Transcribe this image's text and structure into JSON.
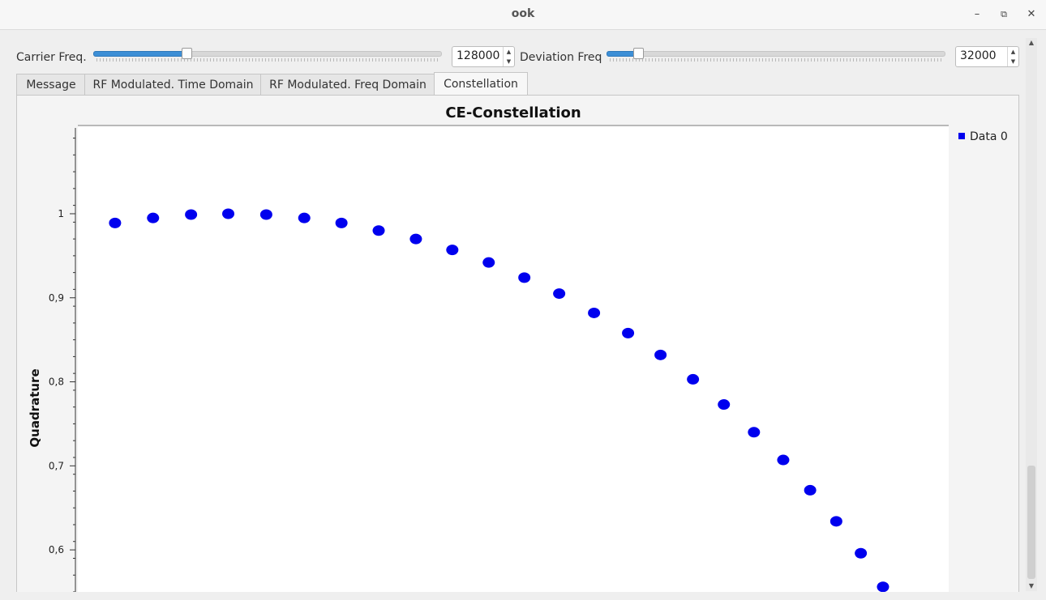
{
  "window": {
    "title": "ook"
  },
  "controls": {
    "carrier_label": "Carrier Freq.",
    "carrier_value": "128000",
    "carrier_slider_fraction": 0.26,
    "deviation_label": "Deviation Freq",
    "deviation_value": "32000",
    "deviation_slider_fraction": 0.08
  },
  "tabs": [
    {
      "label": "Message"
    },
    {
      "label": "RF Modulated. Time Domain"
    },
    {
      "label": "RF Modulated. Freq Domain"
    },
    {
      "label": "Constellation"
    }
  ],
  "active_tab": "Constellation",
  "marker_color": "#0000ee",
  "chart_data": {
    "type": "scatter",
    "title": "CE-Constellation",
    "ylabel": "Quadrature",
    "xlabel": "",
    "ylim": [
      0.55,
      1.105
    ],
    "y_ticks": [
      "1",
      "0,9",
      "0,8",
      "0,7",
      "0,6"
    ],
    "y_tick_values": [
      1.0,
      0.9,
      0.8,
      0.7,
      0.6
    ],
    "legend": {
      "position": "top-right"
    },
    "series": [
      {
        "name": "Data 0",
        "color": "#0000ee",
        "points": [
          {
            "x": 0.147,
            "y": 0.989
          },
          {
            "x": 0.195,
            "y": 0.995
          },
          {
            "x": 0.243,
            "y": 0.999
          },
          {
            "x": 0.29,
            "y": 1.0
          },
          {
            "x": 0.338,
            "y": 0.999
          },
          {
            "x": 0.386,
            "y": 0.995
          },
          {
            "x": 0.433,
            "y": 0.989
          },
          {
            "x": 0.48,
            "y": 0.98
          },
          {
            "x": 0.527,
            "y": 0.97
          },
          {
            "x": 0.573,
            "y": 0.957
          },
          {
            "x": 0.619,
            "y": 0.942
          },
          {
            "x": 0.664,
            "y": 0.924
          },
          {
            "x": 0.708,
            "y": 0.905
          },
          {
            "x": 0.752,
            "y": 0.882
          },
          {
            "x": 0.795,
            "y": 0.858
          },
          {
            "x": 0.836,
            "y": 0.832
          },
          {
            "x": 0.877,
            "y": 0.803
          },
          {
            "x": 0.916,
            "y": 0.773
          },
          {
            "x": 0.954,
            "y": 0.74
          },
          {
            "x": 0.991,
            "y": 0.707
          },
          {
            "x": 1.025,
            "y": 0.671
          },
          {
            "x": 1.058,
            "y": 0.634
          },
          {
            "x": 1.089,
            "y": 0.596
          },
          {
            "x": 1.117,
            "y": 0.556
          }
        ]
      }
    ]
  }
}
